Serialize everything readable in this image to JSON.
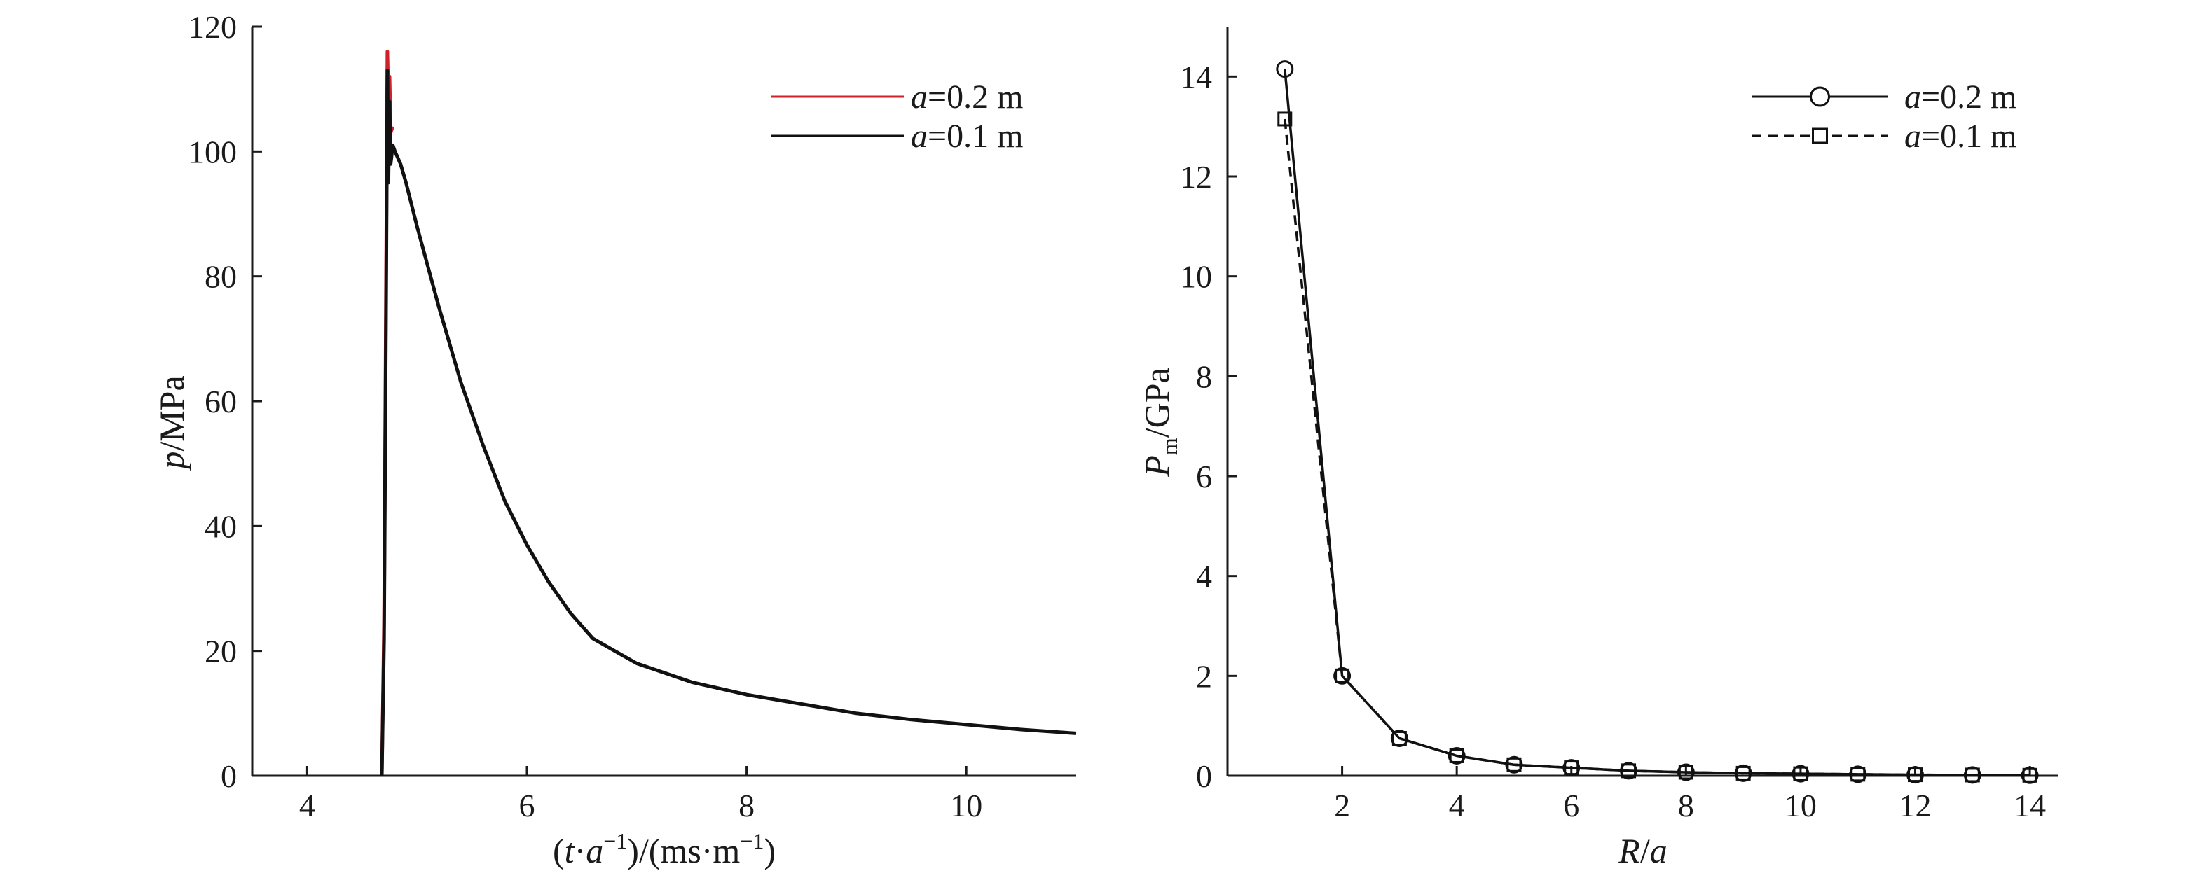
{
  "chart_data": [
    {
      "type": "line",
      "xlabel": {
        "prefix": "(",
        "var": "t",
        "mid": "·",
        "var2": "a",
        "sup": "−1",
        "tail": ")/(ms·m",
        "sup2": "−1",
        "end": ")"
      },
      "ylabel": {
        "var": "p",
        "rest": "/MPa"
      },
      "xlim": [
        3.5,
        11
      ],
      "ylim": [
        0,
        120
      ],
      "xticks": [
        "4",
        "6",
        "8",
        "10"
      ],
      "xtick_values": [
        4,
        6,
        8,
        10
      ],
      "yticks": [
        "0",
        "20",
        "40",
        "60",
        "80",
        "100",
        "120"
      ],
      "ytick_values": [
        0,
        20,
        40,
        60,
        80,
        100,
        120
      ],
      "legend_position": "top-right",
      "series": [
        {
          "legend_var": "a",
          "legend_rest": "=0.2 m",
          "color": "#d0202a",
          "x": [
            4.68,
            4.7,
            4.72,
            4.73,
            4.74,
            4.75,
            4.76,
            4.78
          ],
          "y": [
            0,
            25,
            85,
            116,
            108,
            112,
            103,
            104
          ]
        },
        {
          "legend_var": "a",
          "legend_rest": "=0.1 m",
          "color": "#111111",
          "x": [
            4.68,
            4.7,
            4.72,
            4.73,
            4.74,
            4.75,
            4.76,
            4.78,
            4.8,
            4.85,
            4.9,
            5.0,
            5.2,
            5.4,
            5.6,
            5.8,
            6.0,
            6.2,
            6.4,
            6.6,
            6.8,
            7.0,
            7.5,
            8.0,
            8.5,
            9.0,
            9.5,
            10.0,
            10.5,
            11.0
          ],
          "y": [
            0,
            22,
            80,
            113,
            95,
            108,
            98,
            101,
            100,
            98,
            95,
            88,
            75,
            63,
            53,
            44,
            37,
            31,
            26,
            22,
            20,
            18,
            15,
            13,
            11.5,
            10,
            9,
            8.2,
            7.4,
            6.8
          ]
        }
      ]
    },
    {
      "type": "line",
      "xlabel": {
        "var": "R",
        "mid": "/",
        "var2": "a"
      },
      "ylabel": {
        "var": "P",
        "sub": "m",
        "rest": "/GPa"
      },
      "xlim": [
        0,
        14.5
      ],
      "ylim": [
        0,
        15
      ],
      "xticks": [
        "2",
        "4",
        "6",
        "8",
        "10",
        "12",
        "14"
      ],
      "xtick_values": [
        2,
        4,
        6,
        8,
        10,
        12,
        14
      ],
      "yticks": [
        "0",
        "2",
        "4",
        "6",
        "8",
        "10",
        "12",
        "14"
      ],
      "ytick_values": [
        0,
        2,
        4,
        6,
        8,
        10,
        12,
        14
      ],
      "legend_position": "top-right",
      "series": [
        {
          "legend_var": "a",
          "legend_rest": "=0.2 m",
          "color": "#111111",
          "marker": "circle",
          "dash": "solid",
          "x": [
            1,
            2,
            3,
            4,
            5,
            6,
            7,
            8,
            9,
            10,
            11,
            12,
            13,
            14
          ],
          "y": [
            14.15,
            2.0,
            0.75,
            0.4,
            0.22,
            0.16,
            0.1,
            0.07,
            0.05,
            0.04,
            0.03,
            0.02,
            0.015,
            0.01
          ]
        },
        {
          "legend_var": "a",
          "legend_rest": "=0.1 m",
          "color": "#111111",
          "marker": "square",
          "dash": "dashed",
          "x": [
            1,
            2,
            3,
            4,
            5,
            6,
            7,
            8,
            9,
            10,
            11,
            12,
            13,
            14
          ],
          "y": [
            13.15,
            2.0,
            0.75,
            0.4,
            0.22,
            0.16,
            0.1,
            0.07,
            0.05,
            0.04,
            0.03,
            0.02,
            0.015,
            0.01
          ]
        }
      ]
    }
  ]
}
